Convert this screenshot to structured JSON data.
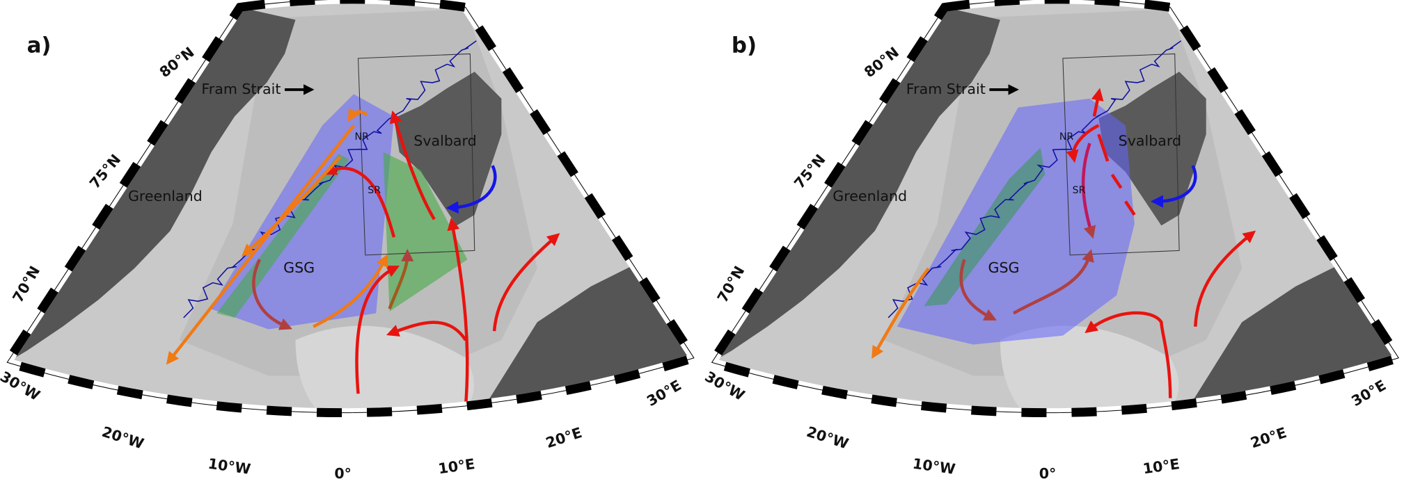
{
  "panels": [
    {
      "label": "a)",
      "latitude_labels": [
        "80°N",
        "75°N",
        "70°N"
      ],
      "longitude_labels": [
        "30°W",
        "20°W",
        "10°W",
        "0°",
        "10°E",
        "20°E",
        "30°E"
      ],
      "place_names": {
        "fram_strait": "Fram Strait",
        "greenland": "Greenland",
        "svalbard": "Svalbard"
      },
      "regions": {
        "nr": "NR",
        "sr": "SR",
        "gsg": "GSG"
      }
    },
    {
      "label": "b)",
      "latitude_labels": [
        "80°N",
        "75°N",
        "70°N"
      ],
      "longitude_labels": [
        "30°W",
        "20°W",
        "10°W",
        "0°",
        "10°E",
        "20°E",
        "30°E"
      ],
      "place_names": {
        "fram_strait": "Fram Strait",
        "greenland": "Greenland",
        "svalbard": "Svalbard"
      },
      "regions": {
        "nr": "NR",
        "sr": "SR",
        "gsg": "GSG"
      }
    }
  ]
}
